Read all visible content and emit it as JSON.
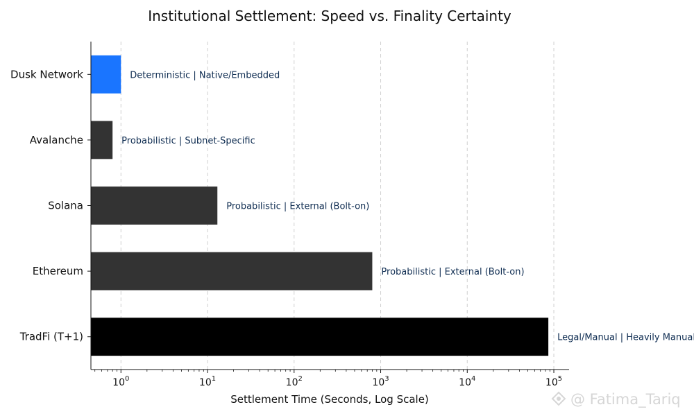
{
  "chart_data": {
    "type": "bar",
    "orientation": "horizontal",
    "title": "Institutional Settlement: Speed vs. Finality Certainty",
    "xlabel": "Settlement Time (Seconds, Log Scale)",
    "ylabel": "",
    "x_scale": "log",
    "xlim": [
      0.45,
      150000
    ],
    "xticks": [
      {
        "value": 1,
        "base": "10",
        "exp": "0"
      },
      {
        "value": 10,
        "base": "10",
        "exp": "1"
      },
      {
        "value": 100,
        "base": "10",
        "exp": "2"
      },
      {
        "value": 1000,
        "base": "10",
        "exp": "3"
      },
      {
        "value": 10000,
        "base": "10",
        "exp": "4"
      },
      {
        "value": 100000,
        "base": "10",
        "exp": "5"
      }
    ],
    "grid": "vertical dashed",
    "categories": [
      "Dusk Network",
      "Avalanche",
      "Solana",
      "Ethereum",
      "TradFi (T+1)"
    ],
    "values": [
      1,
      0.8,
      13,
      800,
      86400
    ],
    "annotations": [
      "Deterministic | Native/Embedded",
      "Probabilistic | Subnet-Specific",
      "Probabilistic | External (Bolt-on)",
      "Probabilistic | External (Bolt-on)",
      "Legal/Manual | Heavily Manual"
    ],
    "bar_colors": [
      "#1a75ff",
      "#333333",
      "#333333",
      "#333333",
      "#000000"
    ],
    "annotation_color": "#0d2b50"
  },
  "watermark": "@ Fatima_Tariq"
}
